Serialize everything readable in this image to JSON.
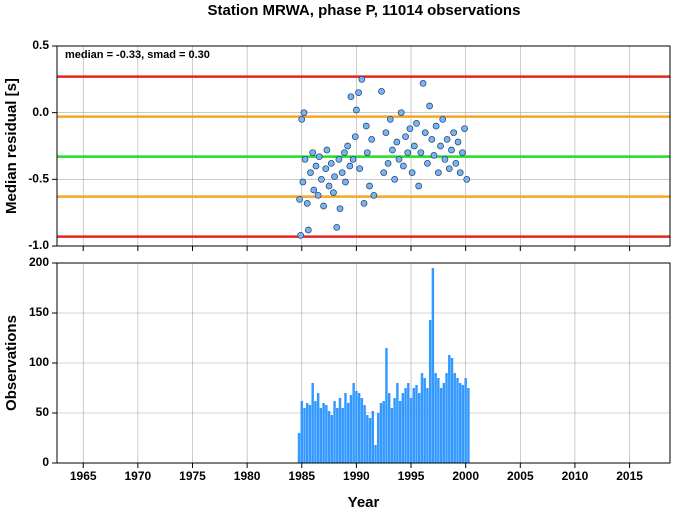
{
  "title": "Station MRWA, phase P, 11014 observations",
  "chart_data": [
    {
      "type": "scatter",
      "ylabel": "Median residual [s]",
      "annotation": "median = -0.33, smad = 0.30",
      "color": "#7ab4f0",
      "grid": true,
      "xlim": [
        1962.6,
        2018.7
      ],
      "xticks": [
        1965,
        1970,
        1975,
        1980,
        1985,
        1990,
        1995,
        2000,
        2005,
        2010,
        2015
      ],
      "ylim": [
        -1.0,
        0.5
      ],
      "yticks": [
        {
          "value": -1,
          "label": "-1.0"
        },
        -0.5,
        {
          "value": 0,
          "label": "0.0"
        },
        0.5
      ],
      "hlines": [
        {
          "value": 0.27,
          "color": "#e8231c"
        },
        {
          "value": -0.03,
          "color": "#f5a623"
        },
        {
          "value": -0.33,
          "color": "#22dd22"
        },
        {
          "value": -0.63,
          "color": "#f5a623"
        },
        {
          "value": -0.93,
          "color": "#e8231c"
        }
      ],
      "x": [
        1984.8,
        1984.9,
        1985.0,
        1985.1,
        1985.2,
        1985.3,
        1985.5,
        1985.6,
        1985.8,
        1986.0,
        1986.1,
        1986.3,
        1986.5,
        1986.6,
        1986.8,
        1987.0,
        1987.2,
        1987.3,
        1987.5,
        1987.7,
        1987.9,
        1988.0,
        1988.2,
        1988.4,
        1988.5,
        1988.7,
        1988.9,
        1989.0,
        1989.2,
        1989.4,
        1989.5,
        1989.7,
        1989.9,
        1990.0,
        1990.2,
        1990.3,
        1990.5,
        1990.7,
        1990.9,
        1991.0,
        1991.2,
        1991.4,
        1991.6,
        1992.3,
        1992.5,
        1992.7,
        1992.9,
        1993.1,
        1993.3,
        1993.5,
        1993.7,
        1993.9,
        1994.1,
        1994.3,
        1994.5,
        1994.7,
        1994.9,
        1995.1,
        1995.3,
        1995.5,
        1995.7,
        1995.9,
        1996.1,
        1996.3,
        1996.5,
        1996.7,
        1996.9,
        1997.1,
        1997.3,
        1997.5,
        1997.7,
        1997.9,
        1998.1,
        1998.3,
        1998.5,
        1998.7,
        1998.9,
        1999.1,
        1999.3,
        1999.5,
        1999.7,
        1999.9,
        2000.1
      ],
      "values": [
        -0.65,
        -0.92,
        -0.05,
        -0.52,
        0.0,
        -0.35,
        -0.68,
        -0.88,
        -0.45,
        -0.3,
        -0.58,
        -0.4,
        -0.62,
        -0.33,
        -0.5,
        -0.7,
        -0.42,
        -0.28,
        -0.55,
        -0.38,
        -0.6,
        -0.48,
        -0.86,
        -0.35,
        -0.72,
        -0.45,
        -0.3,
        -0.52,
        -0.25,
        -0.4,
        0.12,
        -0.35,
        -0.18,
        0.02,
        0.15,
        -0.42,
        0.25,
        -0.68,
        -0.1,
        -0.3,
        -0.55,
        -0.2,
        -0.62,
        0.16,
        -0.45,
        -0.15,
        -0.38,
        -0.05,
        -0.28,
        -0.5,
        -0.22,
        -0.35,
        0.0,
        -0.4,
        -0.18,
        -0.3,
        -0.12,
        -0.45,
        -0.25,
        -0.08,
        -0.55,
        -0.3,
        0.22,
        -0.15,
        -0.38,
        0.05,
        -0.2,
        -0.32,
        -0.1,
        -0.45,
        -0.25,
        -0.05,
        -0.35,
        -0.2,
        -0.42,
        -0.28,
        -0.15,
        -0.38,
        -0.22,
        -0.45,
        -0.3,
        -0.12,
        -0.5
      ]
    },
    {
      "type": "bar",
      "ylabel": "Observations",
      "xlabel": "Year",
      "color": "#3399ff",
      "grid": true,
      "xlim": [
        1962.6,
        2018.7
      ],
      "xticks": [
        1965,
        1970,
        1975,
        1980,
        1985,
        1990,
        1995,
        2000,
        2005,
        2010,
        2015
      ],
      "ylim": [
        0,
        200
      ],
      "yticks": [
        0,
        50,
        100,
        150,
        200
      ],
      "x": [
        1984.75,
        1985,
        1985.25,
        1985.5,
        1985.75,
        1986,
        1986.25,
        1986.5,
        1986.75,
        1987,
        1987.25,
        1987.5,
        1987.75,
        1988,
        1988.25,
        1988.5,
        1988.75,
        1989,
        1989.25,
        1989.5,
        1989.75,
        1990,
        1990.25,
        1990.5,
        1990.75,
        1991,
        1991.25,
        1991.5,
        1991.75,
        1992,
        1992.25,
        1992.5,
        1992.75,
        1993,
        1993.25,
        1993.5,
        1993.75,
        1994,
        1994.25,
        1994.5,
        1994.75,
        1995,
        1995.25,
        1995.5,
        1995.75,
        1996,
        1996.25,
        1996.5,
        1996.75,
        1997,
        1997.25,
        1997.5,
        1997.75,
        1998,
        1998.25,
        1998.5,
        1998.75,
        1999,
        1999.25,
        1999.5,
        1999.75,
        2000,
        2000.25
      ],
      "values": [
        30,
        62,
        55,
        60,
        58,
        80,
        62,
        70,
        55,
        60,
        58,
        52,
        48,
        62,
        55,
        65,
        55,
        70,
        60,
        68,
        80,
        72,
        70,
        65,
        58,
        48,
        45,
        52,
        18,
        50,
        60,
        62,
        115,
        70,
        55,
        65,
        80,
        62,
        70,
        75,
        80,
        65,
        75,
        78,
        70,
        90,
        85,
        75,
        143,
        195,
        90,
        85,
        75,
        80,
        90,
        108,
        105,
        90,
        85,
        80,
        78,
        85,
        75
      ]
    }
  ]
}
